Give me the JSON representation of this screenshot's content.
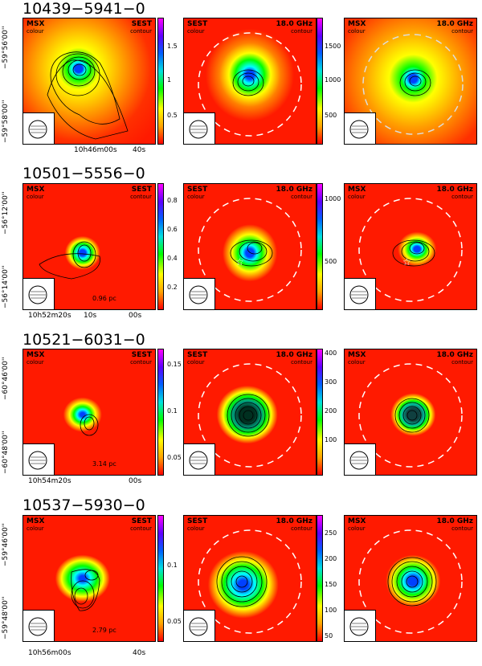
{
  "colors": {
    "bg_red": "#ff1a00",
    "bg_orange": "#ff7a00"
  },
  "rows": [
    {
      "title": "10439−5941−0",
      "y_labels": [
        "−59°56'00''",
        "−59°58'00''"
      ],
      "x_labels": [
        "10h46m00s",
        "40s"
      ],
      "p1": {
        "tl": "MSX",
        "tl_sub": "colour",
        "tr": "SEST",
        "tr_sub": "contour"
      },
      "p2": {
        "tl": "SEST",
        "tl_sub": "colour",
        "tr": "18.0 GHz",
        "tr_sub": "contour"
      },
      "p3": {
        "tl": "MSX",
        "tl_sub": "colour",
        "tr": "18.0 GHz",
        "tr_sub": "contour"
      },
      "cb1": [
        "1.5",
        "1",
        "0.5"
      ],
      "cb2": [
        "1500",
        "1000",
        "500"
      ],
      "scale": ""
    },
    {
      "title": "10501−5556−0",
      "y_labels": [
        "−56°12'00''",
        "−56°14'00''"
      ],
      "x_labels": [
        "10h52m20s",
        "10s",
        "00s"
      ],
      "p1": {
        "tl": "MSX",
        "tl_sub": "colour",
        "tr": "SEST",
        "tr_sub": "contour"
      },
      "p2": {
        "tl": "SEST",
        "tl_sub": "colour",
        "tr": "18.0 GHz",
        "tr_sub": "contour"
      },
      "p3": {
        "tl": "MSX",
        "tl_sub": "colour",
        "tr": "18.0 GHz",
        "tr_sub": "contour"
      },
      "cb1": [
        "0.8",
        "0.6",
        "0.4",
        "0.2"
      ],
      "cb2": [
        "1000",
        "500"
      ],
      "scale": "0.96 pc"
    },
    {
      "title": "10521−6031−0",
      "y_labels": [
        "−60°46'00''",
        "−60°48'00''"
      ],
      "x_labels": [
        "10h54m20s",
        "00s"
      ],
      "p1": {
        "tl": "MSX",
        "tl_sub": "colour",
        "tr": "SEST",
        "tr_sub": "contour"
      },
      "p2": {
        "tl": "SEST",
        "tl_sub": "colour",
        "tr": "18.0 GHz",
        "tr_sub": "contour"
      },
      "p3": {
        "tl": "MSX",
        "tl_sub": "colour",
        "tr": "18.0 GHz",
        "tr_sub": "contour"
      },
      "cb1": [
        "0.15",
        "0.1",
        "0.05"
      ],
      "cb2": [
        "400",
        "300",
        "200",
        "100"
      ],
      "scale": "3.14 pc"
    },
    {
      "title": "10537−5930−0",
      "y_labels": [
        "−59°46'00''",
        "−59°48'00''"
      ],
      "x_labels": [
        "10h56m00s",
        "40s"
      ],
      "p1": {
        "tl": "MSX",
        "tl_sub": "colour",
        "tr": "SEST",
        "tr_sub": "contour"
      },
      "p2": {
        "tl": "SEST",
        "tl_sub": "colour",
        "tr": "18.0 GHz",
        "tr_sub": "contour"
      },
      "p3": {
        "tl": "MSX",
        "tl_sub": "colour",
        "tr": "18.0 GHz",
        "tr_sub": "contour"
      },
      "cb1": [
        "0.1",
        "0.05"
      ],
      "cb2": [
        "250",
        "200",
        "150",
        "100",
        "50"
      ],
      "scale": "2.79 pc"
    }
  ]
}
